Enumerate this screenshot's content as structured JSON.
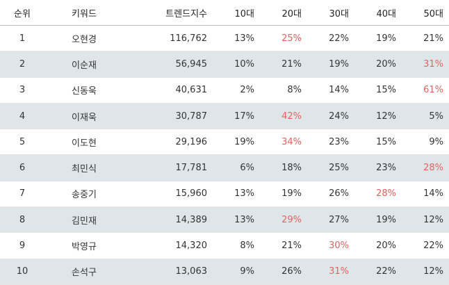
{
  "header": {
    "rank": "순위",
    "keyword": "키워드",
    "trend": "트렌드지수",
    "ages": [
      "10대",
      "20대",
      "30대",
      "40대",
      "50대"
    ]
  },
  "highlight_color": "#e8605c",
  "rows": [
    {
      "rank": "1",
      "keyword": "오현경",
      "trend": "116,762",
      "ages": [
        "13%",
        "25%",
        "22%",
        "19%",
        "21%"
      ],
      "highlight": 1
    },
    {
      "rank": "2",
      "keyword": "이순재",
      "trend": "56,945",
      "ages": [
        "10%",
        "21%",
        "19%",
        "20%",
        "31%"
      ],
      "highlight": 4
    },
    {
      "rank": "3",
      "keyword": "신동욱",
      "trend": "40,631",
      "ages": [
        "2%",
        "8%",
        "14%",
        "15%",
        "61%"
      ],
      "highlight": 4
    },
    {
      "rank": "4",
      "keyword": "이재욱",
      "trend": "30,787",
      "ages": [
        "17%",
        "42%",
        "24%",
        "12%",
        "5%"
      ],
      "highlight": 1
    },
    {
      "rank": "5",
      "keyword": "이도현",
      "trend": "29,196",
      "ages": [
        "19%",
        "34%",
        "23%",
        "15%",
        "9%"
      ],
      "highlight": 1
    },
    {
      "rank": "6",
      "keyword": "최민식",
      "trend": "17,781",
      "ages": [
        "6%",
        "18%",
        "25%",
        "23%",
        "28%"
      ],
      "highlight": 4
    },
    {
      "rank": "7",
      "keyword": "송중기",
      "trend": "15,960",
      "ages": [
        "13%",
        "19%",
        "26%",
        "28%",
        "14%"
      ],
      "highlight": 3
    },
    {
      "rank": "8",
      "keyword": "김민재",
      "trend": "14,389",
      "ages": [
        "13%",
        "29%",
        "27%",
        "19%",
        "12%"
      ],
      "highlight": 1
    },
    {
      "rank": "9",
      "keyword": "박영규",
      "trend": "14,320",
      "ages": [
        "8%",
        "21%",
        "30%",
        "20%",
        "22%"
      ],
      "highlight": 2
    },
    {
      "rank": "10",
      "keyword": "손석구",
      "trend": "13,063",
      "ages": [
        "9%",
        "26%",
        "31%",
        "22%",
        "12%"
      ],
      "highlight": 2
    }
  ]
}
